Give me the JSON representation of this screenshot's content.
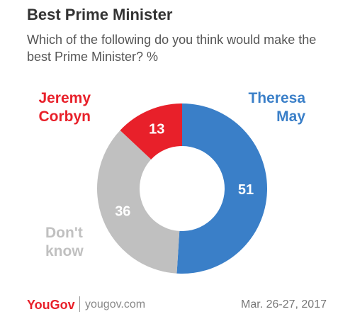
{
  "chart_data": {
    "type": "donut",
    "title": "Best Prime Minister",
    "subtitle": "Which of the following do you think would make the best Prime Minister? %",
    "categories": [
      "Theresa May",
      "Don't know",
      "Jeremy Corbyn"
    ],
    "values": [
      51,
      36,
      13
    ],
    "colors": [
      "#3a7fc8",
      "#c0c0c0",
      "#e8202a"
    ],
    "brand": "YouGov",
    "source": "yougov.com",
    "date": "Mar. 26-27, 2017"
  }
}
